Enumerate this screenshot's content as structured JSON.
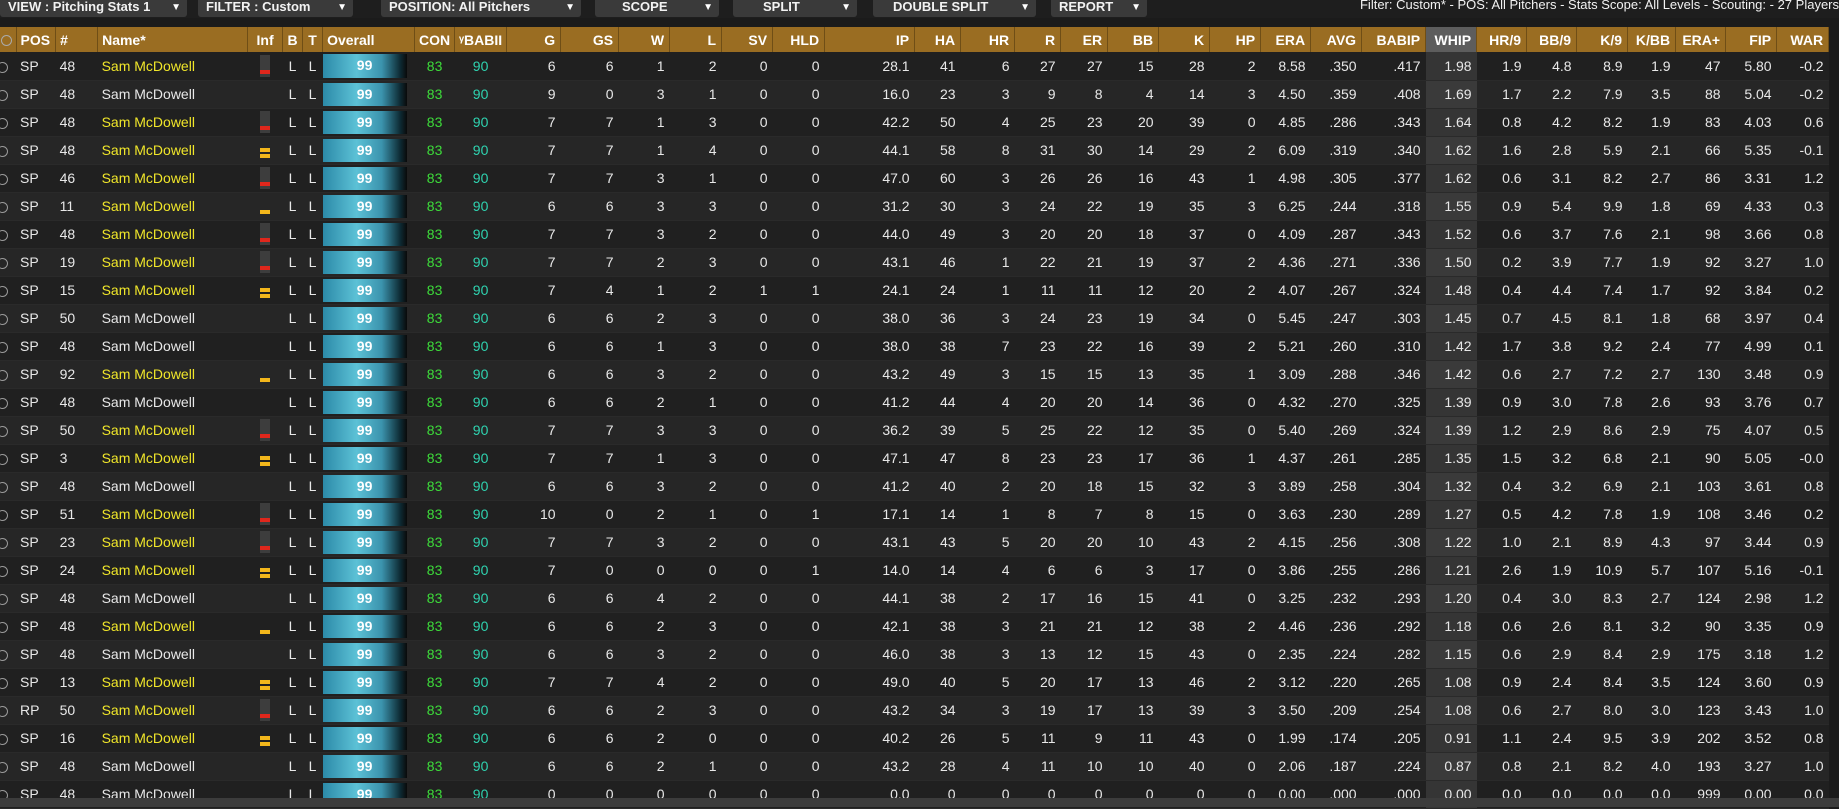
{
  "toolbar": {
    "view": "VIEW : Pitching Stats 1",
    "filter": "FILTER : Custom",
    "position": "POSITION: All Pitchers",
    "scope": "SCOPE",
    "split": "SPLIT",
    "double_split": "DOUBLE SPLIT",
    "report": "REPORT",
    "info": "Filter: Custom* - POS: All Pitchers - Stats Scope: All Levels - Scouting: - 27 Players"
  },
  "columns": [
    "",
    "POS",
    "#",
    "Name*",
    "Inf",
    "B",
    "T",
    "Overall",
    "CON",
    "ᵞBABII",
    "G",
    "GS",
    "W",
    "L",
    "SV",
    "HLD",
    "IP",
    "HA",
    "HR",
    "R",
    "ER",
    "BB",
    "K",
    "HP",
    "ERA",
    "AVG",
    "BABIP",
    "WHIP",
    "HR/9",
    "BB/9",
    "K/9",
    "K/BB",
    "ERA+",
    "FIP",
    "WAR"
  ],
  "colors": {
    "header": "#9a6d22",
    "highlight_name": "#f0e62a",
    "con": "#3ddc3a",
    "babip": "#2fd3b0",
    "injury_red": "#e0271c",
    "injury_yellow": "#f2b61b"
  },
  "rows": [
    {
      "pos": "SP",
      "num": "48",
      "name": "Sam McDowell",
      "hl": true,
      "inf": "red",
      "b": "L",
      "t": "L",
      "ovr": "99",
      "con": "83",
      "babii": "90",
      "g": "6",
      "gs": "6",
      "w": "1",
      "l": "2",
      "sv": "0",
      "hld": "0",
      "ip": "28.1",
      "ha": "41",
      "hr": "6",
      "r": "27",
      "er": "27",
      "bb": "15",
      "k": "28",
      "hp": "2",
      "era": "8.58",
      "avg": ".350",
      "babip": ".417",
      "whip": "1.98",
      "hr9": "1.9",
      "bb9": "4.8",
      "k9": "8.9",
      "kbb": "1.9",
      "eraplus": "47",
      "fip": "5.80",
      "war": "-0.2"
    },
    {
      "pos": "SP",
      "num": "48",
      "name": "Sam McDowell",
      "hl": false,
      "inf": "",
      "b": "L",
      "t": "L",
      "ovr": "99",
      "con": "83",
      "babii": "90",
      "g": "9",
      "gs": "0",
      "w": "3",
      "l": "1",
      "sv": "0",
      "hld": "0",
      "ip": "16.0",
      "ha": "23",
      "hr": "3",
      "r": "9",
      "er": "8",
      "bb": "4",
      "k": "14",
      "hp": "3",
      "era": "4.50",
      "avg": ".359",
      "babip": ".408",
      "whip": "1.69",
      "hr9": "1.7",
      "bb9": "2.2",
      "k9": "7.9",
      "kbb": "3.5",
      "eraplus": "88",
      "fip": "5.04",
      "war": "-0.2"
    },
    {
      "pos": "SP",
      "num": "48",
      "name": "Sam McDowell",
      "hl": true,
      "inf": "red",
      "b": "L",
      "t": "L",
      "ovr": "99",
      "con": "83",
      "babii": "90",
      "g": "7",
      "gs": "7",
      "w": "1",
      "l": "3",
      "sv": "0",
      "hld": "0",
      "ip": "42.2",
      "ha": "50",
      "hr": "4",
      "r": "25",
      "er": "23",
      "bb": "20",
      "k": "39",
      "hp": "0",
      "era": "4.85",
      "avg": ".286",
      "babip": ".343",
      "whip": "1.64",
      "hr9": "0.8",
      "bb9": "4.2",
      "k9": "8.2",
      "kbb": "1.9",
      "eraplus": "83",
      "fip": "4.03",
      "war": "0.6"
    },
    {
      "pos": "SP",
      "num": "48",
      "name": "Sam McDowell",
      "hl": true,
      "inf": "yellow2",
      "b": "L",
      "t": "L",
      "ovr": "99",
      "con": "83",
      "babii": "90",
      "g": "7",
      "gs": "7",
      "w": "1",
      "l": "4",
      "sv": "0",
      "hld": "0",
      "ip": "44.1",
      "ha": "58",
      "hr": "8",
      "r": "31",
      "er": "30",
      "bb": "14",
      "k": "29",
      "hp": "2",
      "era": "6.09",
      "avg": ".319",
      "babip": ".340",
      "whip": "1.62",
      "hr9": "1.6",
      "bb9": "2.8",
      "k9": "5.9",
      "kbb": "2.1",
      "eraplus": "66",
      "fip": "5.35",
      "war": "-0.1"
    },
    {
      "pos": "SP",
      "num": "46",
      "name": "Sam McDowell",
      "hl": true,
      "inf": "red",
      "b": "L",
      "t": "L",
      "ovr": "99",
      "con": "83",
      "babii": "90",
      "g": "7",
      "gs": "7",
      "w": "3",
      "l": "1",
      "sv": "0",
      "hld": "0",
      "ip": "47.0",
      "ha": "60",
      "hr": "3",
      "r": "26",
      "er": "26",
      "bb": "16",
      "k": "43",
      "hp": "1",
      "era": "4.98",
      "avg": ".305",
      "babip": ".377",
      "whip": "1.62",
      "hr9": "0.6",
      "bb9": "3.1",
      "k9": "8.2",
      "kbb": "2.7",
      "eraplus": "86",
      "fip": "3.31",
      "war": "1.2"
    },
    {
      "pos": "SP",
      "num": "11",
      "name": "Sam McDowell",
      "hl": true,
      "inf": "yellow1",
      "b": "L",
      "t": "L",
      "ovr": "99",
      "con": "83",
      "babii": "90",
      "g": "6",
      "gs": "6",
      "w": "3",
      "l": "3",
      "sv": "0",
      "hld": "0",
      "ip": "31.2",
      "ha": "30",
      "hr": "3",
      "r": "24",
      "er": "22",
      "bb": "19",
      "k": "35",
      "hp": "3",
      "era": "6.25",
      "avg": ".244",
      "babip": ".318",
      "whip": "1.55",
      "hr9": "0.9",
      "bb9": "5.4",
      "k9": "9.9",
      "kbb": "1.8",
      "eraplus": "69",
      "fip": "4.33",
      "war": "0.3"
    },
    {
      "pos": "SP",
      "num": "48",
      "name": "Sam McDowell",
      "hl": true,
      "inf": "red",
      "b": "L",
      "t": "L",
      "ovr": "99",
      "con": "83",
      "babii": "90",
      "g": "7",
      "gs": "7",
      "w": "3",
      "l": "2",
      "sv": "0",
      "hld": "0",
      "ip": "44.0",
      "ha": "49",
      "hr": "3",
      "r": "20",
      "er": "20",
      "bb": "18",
      "k": "37",
      "hp": "0",
      "era": "4.09",
      "avg": ".287",
      "babip": ".343",
      "whip": "1.52",
      "hr9": "0.6",
      "bb9": "3.7",
      "k9": "7.6",
      "kbb": "2.1",
      "eraplus": "98",
      "fip": "3.66",
      "war": "0.8"
    },
    {
      "pos": "SP",
      "num": "19",
      "name": "Sam McDowell",
      "hl": true,
      "inf": "red",
      "b": "L",
      "t": "L",
      "ovr": "99",
      "con": "83",
      "babii": "90",
      "g": "7",
      "gs": "7",
      "w": "2",
      "l": "3",
      "sv": "0",
      "hld": "0",
      "ip": "43.1",
      "ha": "46",
      "hr": "1",
      "r": "22",
      "er": "21",
      "bb": "19",
      "k": "37",
      "hp": "2",
      "era": "4.36",
      "avg": ".271",
      "babip": ".336",
      "whip": "1.50",
      "hr9": "0.2",
      "bb9": "3.9",
      "k9": "7.7",
      "kbb": "1.9",
      "eraplus": "92",
      "fip": "3.27",
      "war": "1.0"
    },
    {
      "pos": "SP",
      "num": "15",
      "name": "Sam McDowell",
      "hl": true,
      "inf": "yellow2",
      "b": "L",
      "t": "L",
      "ovr": "99",
      "con": "83",
      "babii": "90",
      "g": "7",
      "gs": "4",
      "w": "1",
      "l": "2",
      "sv": "1",
      "hld": "1",
      "ip": "24.1",
      "ha": "24",
      "hr": "1",
      "r": "11",
      "er": "11",
      "bb": "12",
      "k": "20",
      "hp": "2",
      "era": "4.07",
      "avg": ".267",
      "babip": ".324",
      "whip": "1.48",
      "hr9": "0.4",
      "bb9": "4.4",
      "k9": "7.4",
      "kbb": "1.7",
      "eraplus": "92",
      "fip": "3.84",
      "war": "0.2"
    },
    {
      "pos": "SP",
      "num": "50",
      "name": "Sam McDowell",
      "hl": false,
      "inf": "",
      "b": "L",
      "t": "L",
      "ovr": "99",
      "con": "83",
      "babii": "90",
      "g": "6",
      "gs": "6",
      "w": "2",
      "l": "3",
      "sv": "0",
      "hld": "0",
      "ip": "38.0",
      "ha": "36",
      "hr": "3",
      "r": "24",
      "er": "23",
      "bb": "19",
      "k": "34",
      "hp": "0",
      "era": "5.45",
      "avg": ".247",
      "babip": ".303",
      "whip": "1.45",
      "hr9": "0.7",
      "bb9": "4.5",
      "k9": "8.1",
      "kbb": "1.8",
      "eraplus": "68",
      "fip": "3.97",
      "war": "0.4"
    },
    {
      "pos": "SP",
      "num": "48",
      "name": "Sam McDowell",
      "hl": false,
      "inf": "",
      "b": "L",
      "t": "L",
      "ovr": "99",
      "con": "83",
      "babii": "90",
      "g": "6",
      "gs": "6",
      "w": "1",
      "l": "3",
      "sv": "0",
      "hld": "0",
      "ip": "38.0",
      "ha": "38",
      "hr": "7",
      "r": "23",
      "er": "22",
      "bb": "16",
      "k": "39",
      "hp": "2",
      "era": "5.21",
      "avg": ".260",
      "babip": ".310",
      "whip": "1.42",
      "hr9": "1.7",
      "bb9": "3.8",
      "k9": "9.2",
      "kbb": "2.4",
      "eraplus": "77",
      "fip": "4.99",
      "war": "0.1"
    },
    {
      "pos": "SP",
      "num": "92",
      "name": "Sam McDowell",
      "hl": true,
      "inf": "yellow1",
      "b": "L",
      "t": "L",
      "ovr": "99",
      "con": "83",
      "babii": "90",
      "g": "6",
      "gs": "6",
      "w": "3",
      "l": "2",
      "sv": "0",
      "hld": "0",
      "ip": "43.2",
      "ha": "49",
      "hr": "3",
      "r": "15",
      "er": "15",
      "bb": "13",
      "k": "35",
      "hp": "1",
      "era": "3.09",
      "avg": ".288",
      "babip": ".346",
      "whip": "1.42",
      "hr9": "0.6",
      "bb9": "2.7",
      "k9": "7.2",
      "kbb": "2.7",
      "eraplus": "130",
      "fip": "3.48",
      "war": "0.9"
    },
    {
      "pos": "SP",
      "num": "48",
      "name": "Sam McDowell",
      "hl": false,
      "inf": "",
      "b": "L",
      "t": "L",
      "ovr": "99",
      "con": "83",
      "babii": "90",
      "g": "6",
      "gs": "6",
      "w": "2",
      "l": "1",
      "sv": "0",
      "hld": "0",
      "ip": "41.2",
      "ha": "44",
      "hr": "4",
      "r": "20",
      "er": "20",
      "bb": "14",
      "k": "36",
      "hp": "0",
      "era": "4.32",
      "avg": ".270",
      "babip": ".325",
      "whip": "1.39",
      "hr9": "0.9",
      "bb9": "3.0",
      "k9": "7.8",
      "kbb": "2.6",
      "eraplus": "93",
      "fip": "3.76",
      "war": "0.7"
    },
    {
      "pos": "SP",
      "num": "50",
      "name": "Sam McDowell",
      "hl": true,
      "inf": "red",
      "b": "L",
      "t": "L",
      "ovr": "99",
      "con": "83",
      "babii": "90",
      "g": "7",
      "gs": "7",
      "w": "3",
      "l": "3",
      "sv": "0",
      "hld": "0",
      "ip": "36.2",
      "ha": "39",
      "hr": "5",
      "r": "25",
      "er": "22",
      "bb": "12",
      "k": "35",
      "hp": "0",
      "era": "5.40",
      "avg": ".269",
      "babip": ".324",
      "whip": "1.39",
      "hr9": "1.2",
      "bb9": "2.9",
      "k9": "8.6",
      "kbb": "2.9",
      "eraplus": "75",
      "fip": "4.07",
      "war": "0.5"
    },
    {
      "pos": "SP",
      "num": "3",
      "name": "Sam McDowell",
      "hl": true,
      "inf": "yellow2",
      "b": "L",
      "t": "L",
      "ovr": "99",
      "con": "83",
      "babii": "90",
      "g": "7",
      "gs": "7",
      "w": "1",
      "l": "3",
      "sv": "0",
      "hld": "0",
      "ip": "47.1",
      "ha": "47",
      "hr": "8",
      "r": "23",
      "er": "23",
      "bb": "17",
      "k": "36",
      "hp": "1",
      "era": "4.37",
      "avg": ".261",
      "babip": ".285",
      "whip": "1.35",
      "hr9": "1.5",
      "bb9": "3.2",
      "k9": "6.8",
      "kbb": "2.1",
      "eraplus": "90",
      "fip": "5.05",
      "war": "-0.0"
    },
    {
      "pos": "SP",
      "num": "48",
      "name": "Sam McDowell",
      "hl": false,
      "inf": "",
      "b": "L",
      "t": "L",
      "ovr": "99",
      "con": "83",
      "babii": "90",
      "g": "6",
      "gs": "6",
      "w": "3",
      "l": "2",
      "sv": "0",
      "hld": "0",
      "ip": "41.2",
      "ha": "40",
      "hr": "2",
      "r": "20",
      "er": "18",
      "bb": "15",
      "k": "32",
      "hp": "3",
      "era": "3.89",
      "avg": ".258",
      "babip": ".304",
      "whip": "1.32",
      "hr9": "0.4",
      "bb9": "3.2",
      "k9": "6.9",
      "kbb": "2.1",
      "eraplus": "103",
      "fip": "3.61",
      "war": "0.8"
    },
    {
      "pos": "SP",
      "num": "51",
      "name": "Sam McDowell",
      "hl": true,
      "inf": "red",
      "b": "L",
      "t": "L",
      "ovr": "99",
      "con": "83",
      "babii": "90",
      "g": "10",
      "gs": "0",
      "w": "2",
      "l": "1",
      "sv": "0",
      "hld": "1",
      "ip": "17.1",
      "ha": "14",
      "hr": "1",
      "r": "8",
      "er": "7",
      "bb": "8",
      "k": "15",
      "hp": "0",
      "era": "3.63",
      "avg": ".230",
      "babip": ".289",
      "whip": "1.27",
      "hr9": "0.5",
      "bb9": "4.2",
      "k9": "7.8",
      "kbb": "1.9",
      "eraplus": "108",
      "fip": "3.46",
      "war": "0.2"
    },
    {
      "pos": "SP",
      "num": "23",
      "name": "Sam McDowell",
      "hl": true,
      "inf": "red",
      "b": "L",
      "t": "L",
      "ovr": "99",
      "con": "83",
      "babii": "90",
      "g": "7",
      "gs": "7",
      "w": "3",
      "l": "2",
      "sv": "0",
      "hld": "0",
      "ip": "43.1",
      "ha": "43",
      "hr": "5",
      "r": "20",
      "er": "20",
      "bb": "10",
      "k": "43",
      "hp": "2",
      "era": "4.15",
      "avg": ".256",
      "babip": ".308",
      "whip": "1.22",
      "hr9": "1.0",
      "bb9": "2.1",
      "k9": "8.9",
      "kbb": "4.3",
      "eraplus": "97",
      "fip": "3.44",
      "war": "0.9"
    },
    {
      "pos": "SP",
      "num": "24",
      "name": "Sam McDowell",
      "hl": true,
      "inf": "yellow2",
      "b": "L",
      "t": "L",
      "ovr": "99",
      "con": "83",
      "babii": "90",
      "g": "7",
      "gs": "0",
      "w": "0",
      "l": "0",
      "sv": "0",
      "hld": "1",
      "ip": "14.0",
      "ha": "14",
      "hr": "4",
      "r": "6",
      "er": "6",
      "bb": "3",
      "k": "17",
      "hp": "0",
      "era": "3.86",
      "avg": ".255",
      "babip": ".286",
      "whip": "1.21",
      "hr9": "2.6",
      "bb9": "1.9",
      "k9": "10.9",
      "kbb": "5.7",
      "eraplus": "107",
      "fip": "5.16",
      "war": "-0.1"
    },
    {
      "pos": "SP",
      "num": "48",
      "name": "Sam McDowell",
      "hl": false,
      "inf": "",
      "b": "L",
      "t": "L",
      "ovr": "99",
      "con": "83",
      "babii": "90",
      "g": "6",
      "gs": "6",
      "w": "4",
      "l": "2",
      "sv": "0",
      "hld": "0",
      "ip": "44.1",
      "ha": "38",
      "hr": "2",
      "r": "17",
      "er": "16",
      "bb": "15",
      "k": "41",
      "hp": "0",
      "era": "3.25",
      "avg": ".232",
      "babip": ".293",
      "whip": "1.20",
      "hr9": "0.4",
      "bb9": "3.0",
      "k9": "8.3",
      "kbb": "2.7",
      "eraplus": "124",
      "fip": "2.98",
      "war": "1.2"
    },
    {
      "pos": "SP",
      "num": "48",
      "name": "Sam McDowell",
      "hl": true,
      "inf": "yellow1",
      "b": "L",
      "t": "L",
      "ovr": "99",
      "con": "83",
      "babii": "90",
      "g": "6",
      "gs": "6",
      "w": "2",
      "l": "3",
      "sv": "0",
      "hld": "0",
      "ip": "42.1",
      "ha": "38",
      "hr": "3",
      "r": "21",
      "er": "21",
      "bb": "12",
      "k": "38",
      "hp": "2",
      "era": "4.46",
      "avg": ".236",
      "babip": ".292",
      "whip": "1.18",
      "hr9": "0.6",
      "bb9": "2.6",
      "k9": "8.1",
      "kbb": "3.2",
      "eraplus": "90",
      "fip": "3.35",
      "war": "0.9"
    },
    {
      "pos": "SP",
      "num": "48",
      "name": "Sam McDowell",
      "hl": false,
      "inf": "",
      "b": "L",
      "t": "L",
      "ovr": "99",
      "con": "83",
      "babii": "90",
      "g": "6",
      "gs": "6",
      "w": "3",
      "l": "2",
      "sv": "0",
      "hld": "0",
      "ip": "46.0",
      "ha": "38",
      "hr": "3",
      "r": "13",
      "er": "12",
      "bb": "15",
      "k": "43",
      "hp": "0",
      "era": "2.35",
      "avg": ".224",
      "babip": ".282",
      "whip": "1.15",
      "hr9": "0.6",
      "bb9": "2.9",
      "k9": "8.4",
      "kbb": "2.9",
      "eraplus": "175",
      "fip": "3.18",
      "war": "1.2"
    },
    {
      "pos": "SP",
      "num": "13",
      "name": "Sam McDowell",
      "hl": true,
      "inf": "yellow2",
      "b": "L",
      "t": "L",
      "ovr": "99",
      "con": "83",
      "babii": "90",
      "g": "7",
      "gs": "7",
      "w": "4",
      "l": "2",
      "sv": "0",
      "hld": "0",
      "ip": "49.0",
      "ha": "40",
      "hr": "5",
      "r": "20",
      "er": "17",
      "bb": "13",
      "k": "46",
      "hp": "2",
      "era": "3.12",
      "avg": ".220",
      "babip": ".265",
      "whip": "1.08",
      "hr9": "0.9",
      "bb9": "2.4",
      "k9": "8.4",
      "kbb": "3.5",
      "eraplus": "124",
      "fip": "3.60",
      "war": "0.9"
    },
    {
      "pos": "RP",
      "num": "50",
      "name": "Sam McDowell",
      "hl": true,
      "inf": "red",
      "b": "L",
      "t": "L",
      "ovr": "99",
      "con": "83",
      "babii": "90",
      "g": "6",
      "gs": "6",
      "w": "2",
      "l": "3",
      "sv": "0",
      "hld": "0",
      "ip": "43.2",
      "ha": "34",
      "hr": "3",
      "r": "19",
      "er": "17",
      "bb": "13",
      "k": "39",
      "hp": "3",
      "era": "3.50",
      "avg": ".209",
      "babip": ".254",
      "whip": "1.08",
      "hr9": "0.6",
      "bb9": "2.7",
      "k9": "8.0",
      "kbb": "3.0",
      "eraplus": "123",
      "fip": "3.43",
      "war": "1.0"
    },
    {
      "pos": "SP",
      "num": "16",
      "name": "Sam McDowell",
      "hl": true,
      "inf": "yellow2",
      "b": "L",
      "t": "L",
      "ovr": "99",
      "con": "83",
      "babii": "90",
      "g": "6",
      "gs": "6",
      "w": "2",
      "l": "0",
      "sv": "0",
      "hld": "0",
      "ip": "40.2",
      "ha": "26",
      "hr": "5",
      "r": "11",
      "er": "9",
      "bb": "11",
      "k": "43",
      "hp": "0",
      "era": "1.99",
      "avg": ".174",
      "babip": ".205",
      "whip": "0.91",
      "hr9": "1.1",
      "bb9": "2.4",
      "k9": "9.5",
      "kbb": "3.9",
      "eraplus": "202",
      "fip": "3.52",
      "war": "0.8"
    },
    {
      "pos": "SP",
      "num": "48",
      "name": "Sam McDowell",
      "hl": false,
      "inf": "",
      "b": "L",
      "t": "L",
      "ovr": "99",
      "con": "83",
      "babii": "90",
      "g": "6",
      "gs": "6",
      "w": "2",
      "l": "1",
      "sv": "0",
      "hld": "0",
      "ip": "43.2",
      "ha": "28",
      "hr": "4",
      "r": "11",
      "er": "10",
      "bb": "10",
      "k": "40",
      "hp": "0",
      "era": "2.06",
      "avg": ".187",
      "babip": ".224",
      "whip": "0.87",
      "hr9": "0.8",
      "bb9": "2.1",
      "k9": "8.2",
      "kbb": "4.0",
      "eraplus": "193",
      "fip": "3.27",
      "war": "1.0"
    },
    {
      "pos": "SP",
      "num": "48",
      "name": "Sam McDowell",
      "hl": false,
      "inf": "",
      "b": "L",
      "t": "L",
      "ovr": "99",
      "con": "83",
      "babii": "90",
      "g": "0",
      "gs": "0",
      "w": "0",
      "l": "0",
      "sv": "0",
      "hld": "0",
      "ip": "0.0",
      "ha": "0",
      "hr": "0",
      "r": "0",
      "er": "0",
      "bb": "0",
      "k": "0",
      "hp": "0",
      "era": "0.00",
      "avg": ".000",
      "babip": ".000",
      "whip": "0.00",
      "hr9": "0.0",
      "bb9": "0.0",
      "k9": "0.0",
      "kbb": "0.0",
      "eraplus": "999",
      "fip": "0.00",
      "war": "0.0"
    }
  ]
}
